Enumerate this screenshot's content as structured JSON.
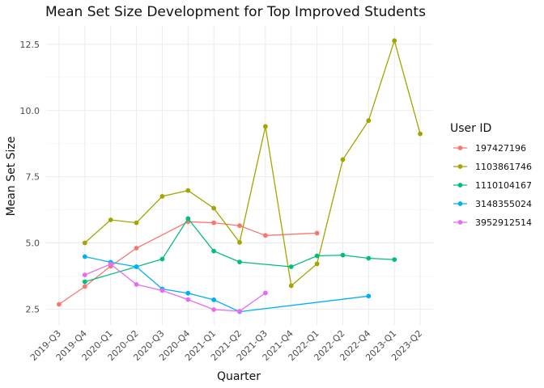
{
  "chart_data": {
    "type": "line",
    "title": "Mean Set Size Development for Top Improved Students",
    "xlabel": "Quarter",
    "ylabel": "Mean Set Size",
    "categories": [
      "2019-Q3",
      "2019-Q4",
      "2020-Q1",
      "2020-Q2",
      "2020-Q3",
      "2020-Q4",
      "2021-Q1",
      "2021-Q2",
      "2021-Q3",
      "2021-Q4",
      "2022-Q1",
      "2022-Q2",
      "2022-Q4",
      "2023-Q1",
      "2023-Q2"
    ],
    "ylim": [
      1.9,
      13.2
    ],
    "yticks": [
      2.5,
      5.0,
      7.5,
      10.0,
      12.5
    ],
    "ytick_labels": [
      "2.5",
      "5.0",
      "7.5",
      "10.0",
      "12.5"
    ],
    "grid": true,
    "legend": {
      "title": "User ID",
      "position": "right"
    },
    "series": [
      {
        "name": "197427196",
        "color": "#F8766D",
        "points": [
          [
            "2019-Q3",
            2.68
          ],
          [
            "2019-Q4",
            3.35
          ],
          [
            "2020-Q1",
            4.12
          ],
          [
            "2020-Q2",
            4.8
          ],
          [
            "2020-Q4",
            5.8
          ],
          [
            "2021-Q1",
            5.76
          ],
          [
            "2021-Q2",
            5.65
          ],
          [
            "2021-Q3",
            5.28
          ],
          [
            "2022-Q1",
            5.37
          ]
        ]
      },
      {
        "name": "1103861746",
        "color": "#A3A500",
        "points": [
          [
            "2019-Q4",
            5.0
          ],
          [
            "2020-Q1",
            5.87
          ],
          [
            "2020-Q2",
            5.76
          ],
          [
            "2020-Q3",
            6.76
          ],
          [
            "2020-Q4",
            6.98
          ],
          [
            "2021-Q1",
            6.31
          ],
          [
            "2021-Q2",
            5.02
          ],
          [
            "2021-Q3",
            9.4
          ],
          [
            "2021-Q4",
            3.38
          ],
          [
            "2022-Q1",
            4.21
          ],
          [
            "2022-Q2",
            8.15
          ],
          [
            "2022-Q4",
            9.62
          ],
          [
            "2023-Q1",
            12.64
          ],
          [
            "2023-Q2",
            9.12
          ]
        ]
      },
      {
        "name": "1110104167",
        "color": "#00BF7D",
        "points": [
          [
            "2019-Q4",
            3.53
          ],
          [
            "2020-Q2",
            4.1
          ],
          [
            "2020-Q3",
            4.39
          ],
          [
            "2020-Q4",
            5.92
          ],
          [
            "2021-Q1",
            4.69
          ],
          [
            "2021-Q2",
            4.28
          ],
          [
            "2021-Q4",
            4.1
          ],
          [
            "2022-Q1",
            4.51
          ],
          [
            "2022-Q2",
            4.54
          ],
          [
            "2022-Q4",
            4.42
          ],
          [
            "2023-Q1",
            4.37
          ]
        ]
      },
      {
        "name": "3148355024",
        "color": "#00B0F6",
        "points": [
          [
            "2019-Q4",
            4.48
          ],
          [
            "2020-Q1",
            4.27
          ],
          [
            "2020-Q2",
            4.1
          ],
          [
            "2020-Q3",
            3.26
          ],
          [
            "2020-Q4",
            3.1
          ],
          [
            "2021-Q1",
            2.85
          ],
          [
            "2021-Q2",
            2.4
          ],
          [
            "2022-Q4",
            2.99
          ]
        ]
      },
      {
        "name": "3952912514",
        "color": "#E76BF3",
        "points": [
          [
            "2019-Q4",
            3.79
          ],
          [
            "2020-Q1",
            4.2
          ],
          [
            "2020-Q2",
            3.43
          ],
          [
            "2020-Q3",
            3.2
          ],
          [
            "2020-Q4",
            2.86
          ],
          [
            "2021-Q1",
            2.48
          ],
          [
            "2021-Q2",
            2.42
          ],
          [
            "2021-Q3",
            3.11
          ]
        ]
      }
    ]
  }
}
